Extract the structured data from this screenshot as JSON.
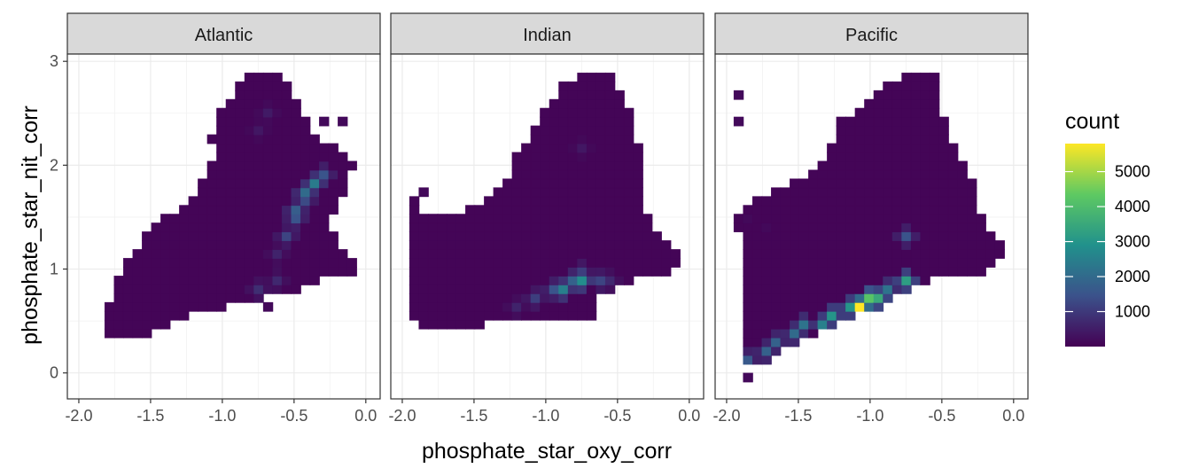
{
  "chart_data": {
    "type": "heatmap",
    "title": "",
    "xlabel": "phosphate_star_oxy_corr",
    "ylabel": "phosphate_star_nit_corr",
    "xlim": [
      -2.08,
      0.1
    ],
    "ylim": [
      -0.25,
      3.07
    ],
    "x_ticks": [
      -2.0,
      -1.5,
      -1.0,
      -0.5,
      0.0
    ],
    "x_tick_labels": [
      "-2.0",
      "-1.5",
      "-1.0",
      "-0.5",
      "0.0"
    ],
    "y_ticks": [
      0,
      1,
      2,
      3
    ],
    "y_tick_labels": [
      "0",
      "1",
      "2",
      "3"
    ],
    "bin_width_x": 0.065,
    "bin_width_y": 0.085,
    "grid": true,
    "facets": [
      "Atlantic",
      "Indian",
      "Pacific"
    ],
    "legend": {
      "title": "count",
      "position": "right",
      "min": 0,
      "max": 5800,
      "ticks": [
        1000,
        2000,
        3000,
        4000,
        5000
      ],
      "tick_labels": [
        "1000",
        "2000",
        "3000",
        "4000",
        "5000"
      ],
      "palette": "viridis",
      "colors": [
        "#440154",
        "#3b528b",
        "#21918c",
        "#5ec962",
        "#fde725"
      ]
    },
    "panels": [
      {
        "name": "Atlantic",
        "outline": [
          [
            -1.8,
            0.3
          ],
          [
            -1.82,
            0.55
          ],
          [
            -1.75,
            0.9
          ],
          [
            -1.6,
            1.2
          ],
          [
            -1.45,
            1.45
          ],
          [
            -1.2,
            1.7
          ],
          [
            -1.05,
            2.1
          ],
          [
            -1.08,
            2.3
          ],
          [
            -0.98,
            2.6
          ],
          [
            -0.82,
            2.9
          ],
          [
            -0.6,
            2.9
          ],
          [
            -0.45,
            2.5
          ],
          [
            -0.35,
            2.25
          ],
          [
            -0.2,
            2.15
          ],
          [
            -0.08,
            2.05
          ],
          [
            -0.15,
            1.75
          ],
          [
            -0.25,
            1.5
          ],
          [
            -0.2,
            1.25
          ],
          [
            -0.05,
            1.1
          ],
          [
            -0.05,
            0.98
          ],
          [
            -0.25,
            0.95
          ],
          [
            -0.38,
            0.85
          ],
          [
            -0.5,
            0.8
          ],
          [
            -0.7,
            0.75
          ],
          [
            -0.8,
            0.68
          ],
          [
            -1.05,
            0.62
          ],
          [
            -1.25,
            0.55
          ],
          [
            -1.4,
            0.45
          ],
          [
            -1.55,
            0.35
          ]
        ],
        "hot_bins": [
          {
            "x": -0.35,
            "y": 1.85,
            "count": 2400
          },
          {
            "x": -0.4,
            "y": 1.75,
            "count": 2000
          },
          {
            "x": -0.48,
            "y": 1.55,
            "count": 1700
          },
          {
            "x": -0.52,
            "y": 1.45,
            "count": 1500
          },
          {
            "x": -0.57,
            "y": 1.35,
            "count": 1200
          },
          {
            "x": -0.3,
            "y": 1.95,
            "count": 1500
          },
          {
            "x": -0.45,
            "y": 1.65,
            "count": 1300
          },
          {
            "x": -0.62,
            "y": 0.9,
            "count": 700
          },
          {
            "x": -0.75,
            "y": 0.85,
            "count": 800
          },
          {
            "x": -0.65,
            "y": 1.15,
            "count": 600
          },
          {
            "x": -0.68,
            "y": 2.55,
            "count": 450
          },
          {
            "x": -0.72,
            "y": 2.3,
            "count": 400
          }
        ],
        "points": [
          {
            "x": -0.32,
            "y": 2.4,
            "count": 150
          },
          {
            "x": -0.18,
            "y": 2.4,
            "count": 150
          },
          {
            "x": -0.7,
            "y": 0.62,
            "count": 150
          }
        ]
      },
      {
        "name": "Indian",
        "outline": [
          [
            -1.97,
            0.5
          ],
          [
            -1.97,
            1.85
          ],
          [
            -1.9,
            1.6
          ],
          [
            -1.8,
            1.5
          ],
          [
            -1.55,
            1.55
          ],
          [
            -1.3,
            1.8
          ],
          [
            -1.2,
            2.1
          ],
          [
            -1.1,
            2.3
          ],
          [
            -1.0,
            2.6
          ],
          [
            -0.85,
            2.8
          ],
          [
            -0.8,
            2.85
          ],
          [
            -0.55,
            2.85
          ],
          [
            -0.4,
            2.5
          ],
          [
            -0.33,
            2.0
          ],
          [
            -0.3,
            1.5
          ],
          [
            -0.2,
            1.35
          ],
          [
            -0.2,
            1.25
          ],
          [
            -0.1,
            1.25
          ],
          [
            -0.08,
            1.1
          ],
          [
            -0.05,
            1.0
          ],
          [
            -0.3,
            0.95
          ],
          [
            -0.45,
            0.85
          ],
          [
            -0.6,
            0.75
          ],
          [
            -0.7,
            0.6
          ],
          [
            -0.55,
            0.5
          ],
          [
            -0.85,
            0.5
          ],
          [
            -1.1,
            0.55
          ],
          [
            -1.4,
            0.5
          ],
          [
            -1.55,
            0.4
          ],
          [
            -1.7,
            0.38
          ],
          [
            -1.85,
            0.43
          ]
        ],
        "hot_bins": [
          {
            "x": -0.75,
            "y": 0.92,
            "count": 2800
          },
          {
            "x": -0.88,
            "y": 0.82,
            "count": 2500
          },
          {
            "x": -0.8,
            "y": 0.9,
            "count": 1800
          },
          {
            "x": -0.95,
            "y": 0.78,
            "count": 1500
          },
          {
            "x": -1.05,
            "y": 0.72,
            "count": 1100
          },
          {
            "x": -0.65,
            "y": 0.9,
            "count": 1200
          },
          {
            "x": -0.78,
            "y": 1.0,
            "count": 1100
          },
          {
            "x": -0.55,
            "y": 0.88,
            "count": 700
          },
          {
            "x": -1.2,
            "y": 0.65,
            "count": 600
          },
          {
            "x": -0.75,
            "y": 2.2,
            "count": 400
          }
        ],
        "points": [
          {
            "x": -1.85,
            "y": 1.72,
            "count": 150
          }
        ]
      },
      {
        "name": "Pacific",
        "outline": [
          [
            -1.9,
            0.1
          ],
          [
            -1.92,
            1.55
          ],
          [
            -1.8,
            1.65
          ],
          [
            -1.7,
            1.75
          ],
          [
            -1.6,
            1.8
          ],
          [
            -1.5,
            1.85
          ],
          [
            -1.3,
            2.05
          ],
          [
            -1.22,
            2.45
          ],
          [
            -1.0,
            2.6
          ],
          [
            -0.95,
            2.75
          ],
          [
            -0.7,
            2.9
          ],
          [
            -0.5,
            2.9
          ],
          [
            -0.5,
            2.55
          ],
          [
            -0.45,
            2.25
          ],
          [
            -0.3,
            1.9
          ],
          [
            -0.2,
            1.4
          ],
          [
            -0.1,
            1.25
          ],
          [
            -0.05,
            1.25
          ],
          [
            -0.1,
            1.1
          ],
          [
            -0.2,
            0.95
          ],
          [
            -0.55,
            0.9
          ],
          [
            -0.72,
            0.8
          ],
          [
            -0.85,
            0.72
          ],
          [
            -0.95,
            0.62
          ],
          [
            -1.1,
            0.55
          ],
          [
            -1.25,
            0.45
          ],
          [
            -1.45,
            0.32
          ],
          [
            -1.55,
            0.25
          ],
          [
            -1.7,
            0.12
          ]
        ],
        "hot_bins": [
          {
            "x": -1.1,
            "y": 0.65,
            "count": 5800
          },
          {
            "x": -1.05,
            "y": 0.65,
            "count": 4800
          },
          {
            "x": -1.0,
            "y": 0.75,
            "count": 4200
          },
          {
            "x": -0.95,
            "y": 0.75,
            "count": 3500
          },
          {
            "x": -1.15,
            "y": 0.6,
            "count": 3000
          },
          {
            "x": -1.25,
            "y": 0.55,
            "count": 3000
          },
          {
            "x": -1.35,
            "y": 0.48,
            "count": 2500
          },
          {
            "x": -1.45,
            "y": 0.45,
            "count": 2200
          },
          {
            "x": -1.55,
            "y": 0.38,
            "count": 2000
          },
          {
            "x": -1.65,
            "y": 0.3,
            "count": 1800
          },
          {
            "x": -1.75,
            "y": 0.25,
            "count": 1800
          },
          {
            "x": -1.85,
            "y": 0.15,
            "count": 1600
          },
          {
            "x": -0.75,
            "y": 0.92,
            "count": 3200
          },
          {
            "x": -0.85,
            "y": 0.85,
            "count": 2200
          },
          {
            "x": -0.75,
            "y": 1.32,
            "count": 1500
          },
          {
            "x": -0.9,
            "y": 0.8,
            "count": 1400
          }
        ],
        "points": [
          {
            "x": -1.9,
            "y": 2.7,
            "count": 150
          },
          {
            "x": -1.9,
            "y": 2.4,
            "count": 150
          },
          {
            "x": -1.85,
            "y": 1.45,
            "count": 150
          },
          {
            "x": -1.75,
            "y": 1.4,
            "count": 150
          },
          {
            "x": -1.85,
            "y": -0.05,
            "count": 150
          }
        ]
      }
    ]
  }
}
